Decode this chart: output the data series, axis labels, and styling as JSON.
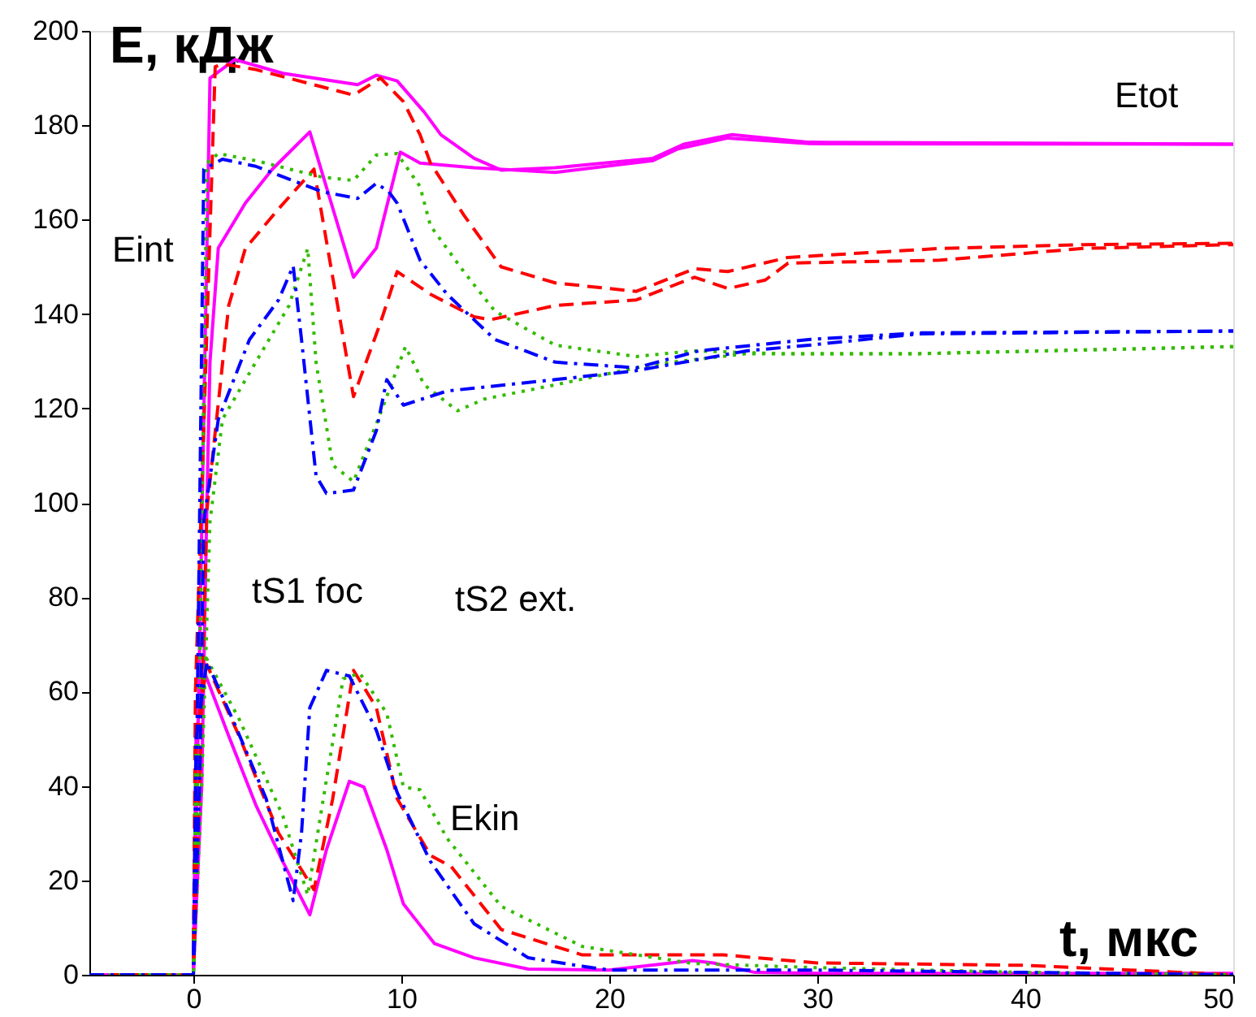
{
  "chart_data": {
    "type": "line",
    "xlabel": "t, мкс",
    "ylabel": "E, кДж",
    "xlim": [
      -5,
      50
    ],
    "ylim": [
      0,
      200
    ],
    "xticks": [
      0,
      10,
      20,
      30,
      40,
      50
    ],
    "yticks": [
      0,
      20,
      40,
      60,
      80,
      100,
      120,
      140,
      160,
      180,
      200
    ],
    "grid": false,
    "marker": "none",
    "annotations": [
      "Etot",
      "Eint",
      "Ekin",
      "tS1 foc",
      "tS2 ext."
    ],
    "series": [
      {
        "color": "#ff00ff",
        "line_style": "solid",
        "x": [
          -5,
          0,
          0.26,
          0.8,
          2.0,
          4.3,
          7.9,
          8.8,
          9.8,
          11.1,
          11.9,
          13.5,
          14.8,
          17.4,
          22.1,
          23.6,
          25.9,
          29.6,
          50
        ],
        "values": [
          0,
          0,
          60,
          190,
          193.9,
          191,
          188.6,
          190.6,
          189.4,
          182.8,
          178,
          173,
          170.5,
          171,
          173,
          176,
          178,
          176.4,
          176
        ]
      },
      {
        "color": "#ff00ff",
        "line_style": "solid",
        "x": [
          -5,
          0,
          0.4,
          0.65,
          0.8,
          1.2,
          2.5,
          3.8,
          5.6,
          7.7,
          8.8,
          9.95,
          10.9,
          13.5,
          17.4,
          22.1,
          23.3,
          25.7,
          29.6,
          50
        ],
        "values": [
          0,
          0,
          40,
          99.6,
          129.8,
          154,
          163.5,
          170.7,
          178.6,
          147.8,
          154,
          174.3,
          172,
          171,
          170,
          172.5,
          175,
          177.3,
          176.1,
          176
        ]
      },
      {
        "color": "#ff00ff",
        "line_style": "solid",
        "x": [
          -5,
          0,
          0.13,
          0.5,
          1.7,
          3,
          4.3,
          5.6,
          6.4,
          7.5,
          8.2,
          9.3,
          10.1,
          11.6,
          13.5,
          16.1,
          20,
          24,
          25,
          27,
          30,
          50
        ],
        "values": [
          0,
          0,
          50,
          64.5,
          50.6,
          36,
          24,
          12.7,
          26.5,
          41,
          39.8,
          26.5,
          15,
          6.6,
          3.6,
          1.2,
          1,
          3,
          2.5,
          0.5,
          0.3,
          0.3
        ]
      },
      {
        "color": "#ff0000",
        "line_style": "dashed",
        "x": [
          -5,
          0,
          0.1,
          1.05,
          1.4,
          3.0,
          7.7,
          9.0,
          10.1,
          10.9,
          11.4,
          13,
          14.8,
          17.4,
          21.3,
          24.1,
          25.7,
          28.6,
          35.9,
          42.8,
          50
        ],
        "values": [
          0,
          0,
          60,
          192.4,
          193,
          191.8,
          186.4,
          190,
          185,
          178,
          172,
          161,
          150,
          146.6,
          144.8,
          149.6,
          149,
          152,
          153.9,
          154.7,
          155
        ]
      },
      {
        "color": "#ff0000",
        "line_style": "dashed",
        "x": [
          -5,
          0,
          0.3,
          0.65,
          1.7,
          2.5,
          4.1,
          5.8,
          6.7,
          7.7,
          9.0,
          9.8,
          11.4,
          13.5,
          14.3,
          17.4,
          21.3,
          24.1,
          25.7,
          27.5,
          28.6,
          35.9,
          42.8,
          50
        ],
        "values": [
          0,
          0,
          40,
          98.4,
          141.8,
          153.9,
          162.3,
          170.7,
          147.8,
          122.5,
          138.2,
          149,
          144.2,
          139.4,
          138.8,
          141.8,
          143,
          147.8,
          145.4,
          147.2,
          150.8,
          151.4,
          153.9,
          154.7
        ]
      },
      {
        "color": "#ff0000",
        "line_style": "dashed",
        "x": [
          -5,
          0,
          0.13,
          0.65,
          2.2,
          4.1,
          5.8,
          6.7,
          7.7,
          8.8,
          9.8,
          11.4,
          12.4,
          14.8,
          18.7,
          25.5,
          30,
          40,
          45,
          50
        ],
        "values": [
          0,
          0,
          50,
          65.7,
          50.6,
          30,
          18,
          37.3,
          64.5,
          56.6,
          37.3,
          25.3,
          22.9,
          9.6,
          4.2,
          4.2,
          2.5,
          2,
          1,
          0
        ]
      },
      {
        "color": "#33bb00",
        "line_style": "dotted",
        "x": [
          -5,
          0,
          0.3,
          0.65,
          1.2,
          3.0,
          6.2,
          7.7,
          8.8,
          9.8,
          10.9,
          11.4,
          13,
          14.5,
          17.4,
          21.3,
          24,
          28.3,
          34.9,
          50
        ],
        "values": [
          0,
          0,
          60,
          172,
          174,
          172.5,
          169,
          168.3,
          173.7,
          174,
          167,
          158.7,
          149,
          140.6,
          133.4,
          131,
          132.2,
          131.6,
          131.6,
          133.1
        ]
      },
      {
        "color": "#33bb00",
        "line_style": "dotted",
        "x": [
          -5,
          0,
          0.4,
          0.8,
          1.4,
          3,
          4.6,
          5.5,
          5.9,
          6.7,
          7.7,
          9,
          10.2,
          11.1,
          12.7,
          14,
          17.4,
          21.3,
          23,
          26.6,
          34.9,
          50
        ],
        "values": [
          0,
          0,
          40,
          96,
          117.7,
          129.8,
          141.8,
          153.9,
          129.8,
          108,
          104.5,
          119,
          133.1,
          125,
          119.5,
          122,
          125,
          128.6,
          129.8,
          131.6,
          131.6,
          133.1
        ]
      },
      {
        "color": "#33bb00",
        "line_style": "dotted",
        "x": [
          -5,
          0,
          0.13,
          0.65,
          2.2,
          4.3,
          5.5,
          6.2,
          7.2,
          8,
          9.3,
          10.1,
          10.9,
          12.2,
          14.8,
          18.7,
          24,
          30,
          40,
          50
        ],
        "values": [
          0,
          0,
          50,
          66.9,
          54.2,
          33.7,
          16.9,
          36,
          62.7,
          63.9,
          55.4,
          39.8,
          39.2,
          28.9,
          14.5,
          6,
          2.4,
          1.5,
          0.5,
          0
        ]
      },
      {
        "color": "#0000ff",
        "line_style": "dashdot",
        "x": [
          -5,
          0,
          0.2,
          0.5,
          1.4,
          3,
          6.2,
          7.9,
          8.8,
          9.4,
          9.8,
          10.9,
          12.2,
          14.5,
          17.4,
          21.3,
          24.3,
          29.6,
          34.9,
          50
        ],
        "values": [
          0,
          0,
          60,
          170.7,
          172.8,
          171.3,
          165.9,
          164.5,
          167.7,
          165.9,
          163.5,
          151.4,
          144.2,
          134.6,
          129.8,
          128.6,
          132.2,
          134.6,
          136,
          136.4
        ]
      },
      {
        "color": "#0000ff",
        "line_style": "dashdot",
        "x": [
          -5,
          0,
          0.3,
          0.5,
          1.2,
          2.7,
          4.1,
          4.8,
          5.2,
          5.9,
          6.4,
          7.7,
          8.8,
          9.3,
          10.1,
          12.2,
          17.4,
          21.3,
          26.6,
          29.6,
          34.9,
          50
        ],
        "values": [
          0,
          0,
          40,
          96,
          117.7,
          134.6,
          143,
          150.2,
          134.6,
          105.7,
          102,
          102.7,
          115.3,
          126.1,
          120.7,
          123.7,
          126.1,
          128,
          132.2,
          133.4,
          135.8,
          136.4
        ]
      },
      {
        "color": "#0000ff",
        "line_style": "dashdot",
        "x": [
          -5,
          0,
          0.13,
          0.65,
          2,
          3.5,
          4.8,
          5.2,
          5.6,
          6.4,
          7.5,
          8.8,
          9.8,
          11.4,
          13.5,
          16.1,
          18.7,
          20,
          30,
          40,
          50
        ],
        "values": [
          0,
          0,
          50,
          66.3,
          53,
          37.3,
          15.7,
          30,
          56.6,
          64.5,
          63.3,
          51.8,
          38.6,
          24,
          10.8,
          3.6,
          1.8,
          1,
          1,
          0.5,
          0
        ]
      }
    ]
  }
}
